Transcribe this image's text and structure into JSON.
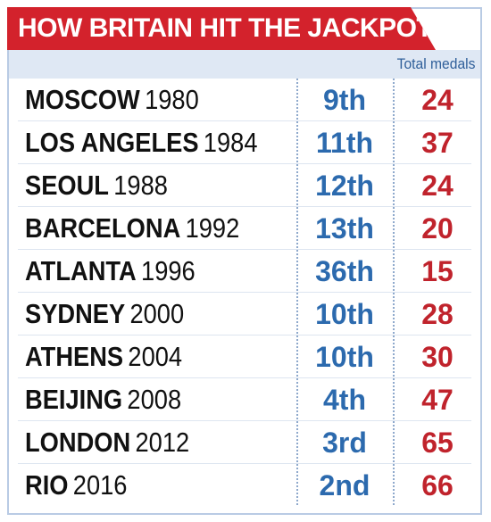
{
  "title": "HOW BRITAIN HIT THE JACKPOT",
  "column_header": "Total medals",
  "colors": {
    "title_bg": "#d3222c",
    "position_text": "#2c6aae",
    "medals_text": "#c0232c",
    "header_band": "#dfe8f4"
  },
  "rows": [
    {
      "city": "MOSCOW",
      "year": "1980",
      "position": "9th",
      "medals": "24"
    },
    {
      "city": "LOS ANGELES",
      "year": "1984",
      "position": "11th",
      "medals": "37"
    },
    {
      "city": "SEOUL",
      "year": "1988",
      "position": "12th",
      "medals": "24"
    },
    {
      "city": "BARCELONA",
      "year": "1992",
      "position": "13th",
      "medals": "20"
    },
    {
      "city": "ATLANTA",
      "year": "1996",
      "position": "36th",
      "medals": "15"
    },
    {
      "city": "SYDNEY",
      "year": "2000",
      "position": "10th",
      "medals": "28"
    },
    {
      "city": "ATHENS",
      "year": "2004",
      "position": "10th",
      "medals": "30"
    },
    {
      "city": "BEIJING",
      "year": "2008",
      "position": "4th",
      "medals": "47"
    },
    {
      "city": "LONDON",
      "year": "2012",
      "position": "3rd",
      "medals": "65"
    },
    {
      "city": "RIO",
      "year": "2016",
      "position": "2nd",
      "medals": "66"
    }
  ]
}
